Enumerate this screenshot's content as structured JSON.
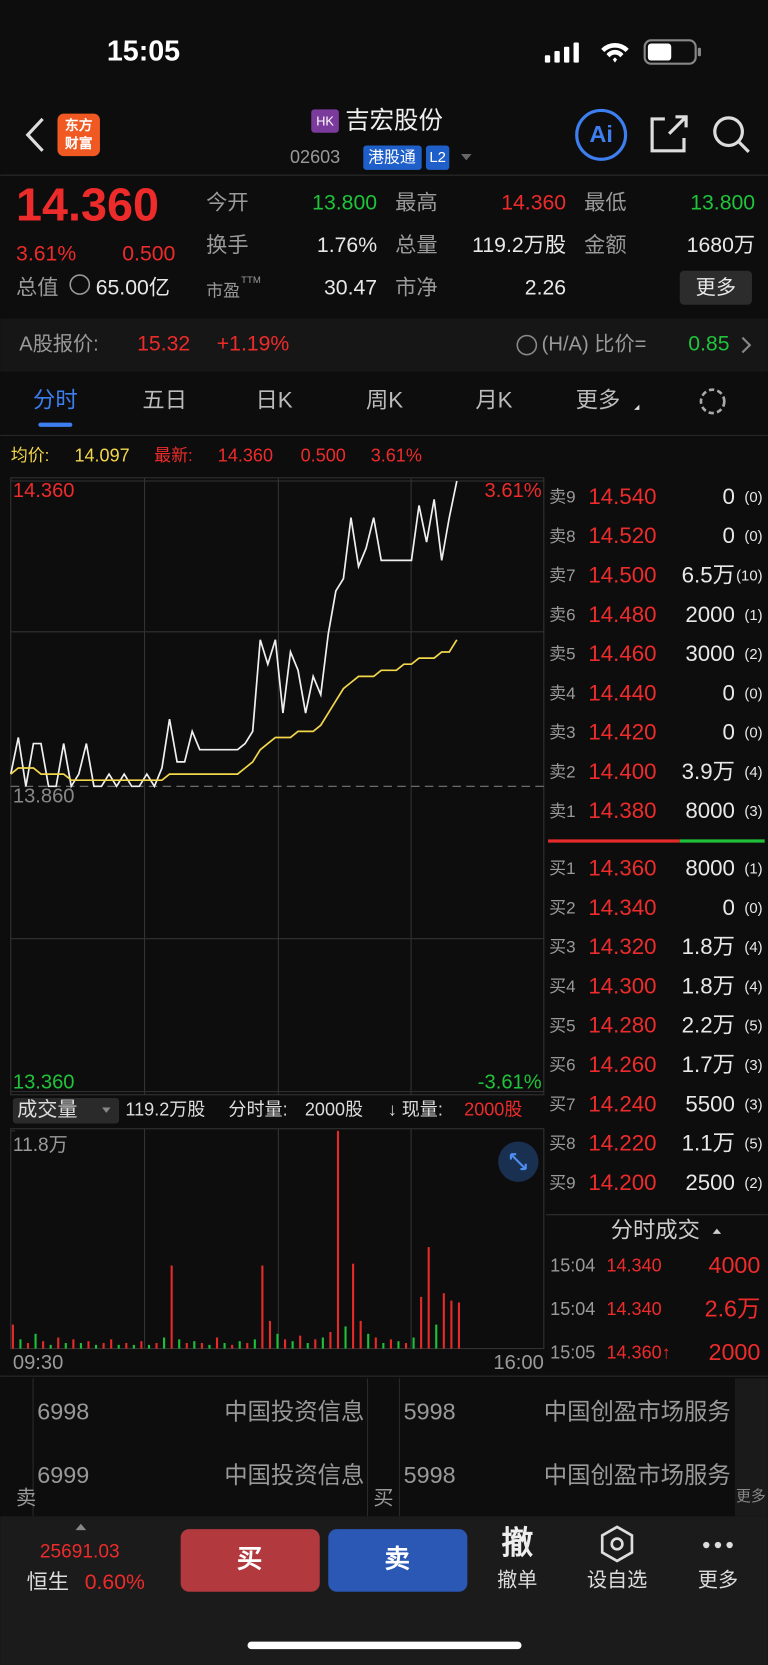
{
  "status_bar": {
    "time": "15:05"
  },
  "header": {
    "logo": [
      "东方",
      "财富"
    ],
    "market": "HK",
    "name": "吉宏股份",
    "code": "02603",
    "tags": [
      "港股通",
      "L2"
    ],
    "ai": "Ai"
  },
  "quote": {
    "price": "14.360",
    "change_pct": "3.61%",
    "change": "0.500",
    "market_cap_label": "总值",
    "market_cap": "65.00亿",
    "stats": [
      {
        "label": "今开",
        "value": "13.800"
      },
      {
        "label": "最高",
        "value": "14.360"
      },
      {
        "label": "最低",
        "value": "13.800"
      },
      {
        "label": "换手",
        "value": "1.76%"
      },
      {
        "label": "总量",
        "value": "119.2万股"
      },
      {
        "label": "金额",
        "value": "1680万"
      },
      {
        "label": "市盈",
        "sup": "TTM",
        "value": "30.47"
      },
      {
        "label": "市净",
        "value": "2.26"
      }
    ],
    "more": "更多"
  },
  "a_share": {
    "label": "A股报价:",
    "price": "15.32",
    "change": "+1.19%",
    "ratio_label": "(H/A) 比价=",
    "ratio": "0.85"
  },
  "tabs": [
    "分时",
    "五日",
    "日K",
    "周K",
    "月K",
    "更多"
  ],
  "chart_info": {
    "avg_label": "均价:",
    "avg": "14.097",
    "latest_label": "最新:",
    "latest": "14.360",
    "change": "0.500",
    "change_pct": "3.61%"
  },
  "chart_data": [
    {
      "type": "line",
      "ylim": [
        13.36,
        14.36
      ],
      "yticks": [
        {
          "value": 14.36,
          "label": "14.360"
        },
        {
          "value": 13.86,
          "label": "13.860"
        },
        {
          "value": 13.36,
          "label": "13.360"
        }
      ],
      "y2lim": [
        -3.61,
        3.61
      ],
      "y2ticks": [
        {
          "value": 3.61,
          "label": "3.61%"
        },
        {
          "value": -3.61,
          "label": "-3.61%"
        }
      ],
      "x_labels": [
        "09:30",
        "16:00"
      ],
      "series": [
        {
          "color": "#f0f0f0",
          "values": [
            13.88,
            13.94,
            13.86,
            13.93,
            13.93,
            13.86,
            13.86,
            13.93,
            13.86,
            13.88,
            13.93,
            13.86,
            13.86,
            13.88,
            13.86,
            13.88,
            13.86,
            13.86,
            13.88,
            13.86,
            13.89,
            13.97,
            13.9,
            13.9,
            13.95,
            13.92,
            13.92,
            13.92,
            13.92,
            13.92,
            13.92,
            13.93,
            13.95,
            14.1,
            14.06,
            14.1,
            13.98,
            14.08,
            14.05,
            13.98,
            14.04,
            14.01,
            14.11,
            14.18,
            14.2,
            14.3,
            14.22,
            14.25,
            14.3,
            14.23,
            14.23,
            14.23,
            14.23,
            14.23,
            14.32,
            14.26,
            14.33,
            14.23,
            14.3,
            14.36
          ]
        },
        {
          "color": "#f2d64b",
          "values": [
            13.88,
            13.89,
            13.89,
            13.89,
            13.88,
            13.88,
            13.88,
            13.88,
            13.87,
            13.87,
            13.87,
            13.87,
            13.87,
            13.87,
            13.87,
            13.87,
            13.87,
            13.87,
            13.87,
            13.87,
            13.87,
            13.88,
            13.88,
            13.88,
            13.88,
            13.88,
            13.88,
            13.88,
            13.88,
            13.88,
            13.88,
            13.89,
            13.9,
            13.92,
            13.93,
            13.94,
            13.94,
            13.94,
            13.95,
            13.95,
            13.95,
            13.96,
            13.98,
            14,
            14.02,
            14.03,
            14.04,
            14.04,
            14.04,
            14.05,
            14.05,
            14.05,
            14.06,
            14.06,
            14.07,
            14.07,
            14.07,
            14.08,
            14.08,
            14.1
          ]
        }
      ]
    },
    {
      "type": "bar",
      "ylim": [
        0,
        11.8
      ],
      "yticks": [
        {
          "value": 11.8,
          "label": "11.8万"
        }
      ],
      "values": [
        1.3,
        0.5,
        0.3,
        0.8,
        0.4,
        0.2,
        0.6,
        0.3,
        0.5,
        0.3,
        0.4,
        0.2,
        0.3,
        0.5,
        0.2,
        0.3,
        0.2,
        0.4,
        0.2,
        0.3,
        0.6,
        4.5,
        0.5,
        0.3,
        0.4,
        0.3,
        0.2,
        0.6,
        0.3,
        0.2,
        0.4,
        0.3,
        0.5,
        4.5,
        1.5,
        0.8,
        0.5,
        0.4,
        0.7,
        0.3,
        0.5,
        0.6,
        0.9,
        11.8,
        1.2,
        4.6,
        1.5,
        0.8,
        0.6,
        0.3,
        0.5,
        0.4,
        0.3,
        0.6,
        2.8,
        5.5,
        1.3,
        3,
        2.6,
        2.5
      ],
      "colors": [
        "#e52a2a",
        "#1fbf3a",
        "#e52a2a",
        "#1fbf3a",
        "#e52a2a",
        "#1fbf3a",
        "#e52a2a",
        "#1fbf3a",
        "#e52a2a",
        "#1fbf3a",
        "#e52a2a",
        "#1fbf3a",
        "#e52a2a",
        "#e52a2a",
        "#1fbf3a",
        "#e52a2a",
        "#1fbf3a",
        "#e52a2a",
        "#1fbf3a",
        "#e52a2a",
        "#1fbf3a",
        "#e52a2a",
        "#1fbf3a",
        "#e52a2a",
        "#1fbf3a",
        "#e52a2a",
        "#1fbf3a",
        "#e52a2a",
        "#1fbf3a",
        "#e52a2a",
        "#1fbf3a",
        "#e52a2a",
        "#1fbf3a",
        "#e52a2a",
        "#e52a2a",
        "#1fbf3a",
        "#e52a2a",
        "#1fbf3a",
        "#e52a2a",
        "#1fbf3a",
        "#e52a2a",
        "#1fbf3a",
        "#e52a2a",
        "#e52a2a",
        "#1fbf3a",
        "#e52a2a",
        "#e52a2a",
        "#1fbf3a",
        "#e52a2a",
        "#1fbf3a",
        "#e52a2a",
        "#1fbf3a",
        "#e52a2a",
        "#1fbf3a",
        "#e52a2a",
        "#e52a2a",
        "#1fbf3a",
        "#e52a2a",
        "#e52a2a",
        "#e52a2a"
      ]
    }
  ],
  "volume_bar": {
    "selector": "成交量",
    "total": "119.2万股",
    "minute_label": "分时量:",
    "minute": "2000股",
    "current_label": "↓ 现量:",
    "current": "2000股"
  },
  "order_book": {
    "asks": [
      {
        "label": "卖9",
        "price": "14.540",
        "volume": "0",
        "count": "(0)"
      },
      {
        "label": "卖8",
        "price": "14.520",
        "volume": "0",
        "count": "(0)"
      },
      {
        "label": "卖7",
        "price": "14.500",
        "volume": "6.5万",
        "count": "(10)"
      },
      {
        "label": "卖6",
        "price": "14.480",
        "volume": "2000",
        "count": "(1)"
      },
      {
        "label": "卖5",
        "price": "14.460",
        "volume": "3000",
        "count": "(2)"
      },
      {
        "label": "卖4",
        "price": "14.440",
        "volume": "0",
        "count": "(0)"
      },
      {
        "label": "卖3",
        "price": "14.420",
        "volume": "0",
        "count": "(0)"
      },
      {
        "label": "卖2",
        "price": "14.400",
        "volume": "3.9万",
        "count": "(4)"
      },
      {
        "label": "卖1",
        "price": "14.380",
        "volume": "8000",
        "count": "(3)"
      }
    ],
    "bids": [
      {
        "label": "买1",
        "price": "14.360",
        "volume": "8000",
        "count": "(1)"
      },
      {
        "label": "买2",
        "price": "14.340",
        "volume": "0",
        "count": "(0)"
      },
      {
        "label": "买3",
        "price": "14.320",
        "volume": "1.8万",
        "count": "(4)"
      },
      {
        "label": "买4",
        "price": "14.300",
        "volume": "1.8万",
        "count": "(4)"
      },
      {
        "label": "买5",
        "price": "14.280",
        "volume": "2.2万",
        "count": "(5)"
      },
      {
        "label": "买6",
        "price": "14.260",
        "volume": "1.7万",
        "count": "(3)"
      },
      {
        "label": "买7",
        "price": "14.240",
        "volume": "5500",
        "count": "(3)"
      },
      {
        "label": "买8",
        "price": "14.220",
        "volume": "1.1万",
        "count": "(5)"
      },
      {
        "label": "买9",
        "price": "14.200",
        "volume": "2500",
        "count": "(2)"
      }
    ]
  },
  "trades": {
    "title": "分时成交",
    "rows": [
      {
        "time": "15:04",
        "price": "14.340",
        "volume": "4000"
      },
      {
        "time": "15:04",
        "price": "14.340",
        "volume": "2.6万"
      },
      {
        "time": "15:05",
        "price": "14.360↑",
        "volume": "2000"
      }
    ]
  },
  "brokers": {
    "sell_label": "卖",
    "sell": [
      {
        "id": "6998",
        "name": "中国投资信息"
      },
      {
        "id": "6999",
        "name": "中国投资信息"
      }
    ],
    "buy_label": "买",
    "buy": [
      {
        "id": "5998",
        "name": "中国创盈市场服务"
      },
      {
        "id": "5998",
        "name": "中国创盈市场服务"
      }
    ],
    "more": "更多"
  },
  "bottom_bar": {
    "index_value": "25691.03",
    "index_name": "恒生",
    "index_change": "0.60%",
    "buy": "买",
    "sell": "卖",
    "actions": [
      {
        "icon": "撤",
        "label": "撤单"
      },
      {
        "label": "设自选"
      },
      {
        "label": "更多"
      }
    ]
  }
}
